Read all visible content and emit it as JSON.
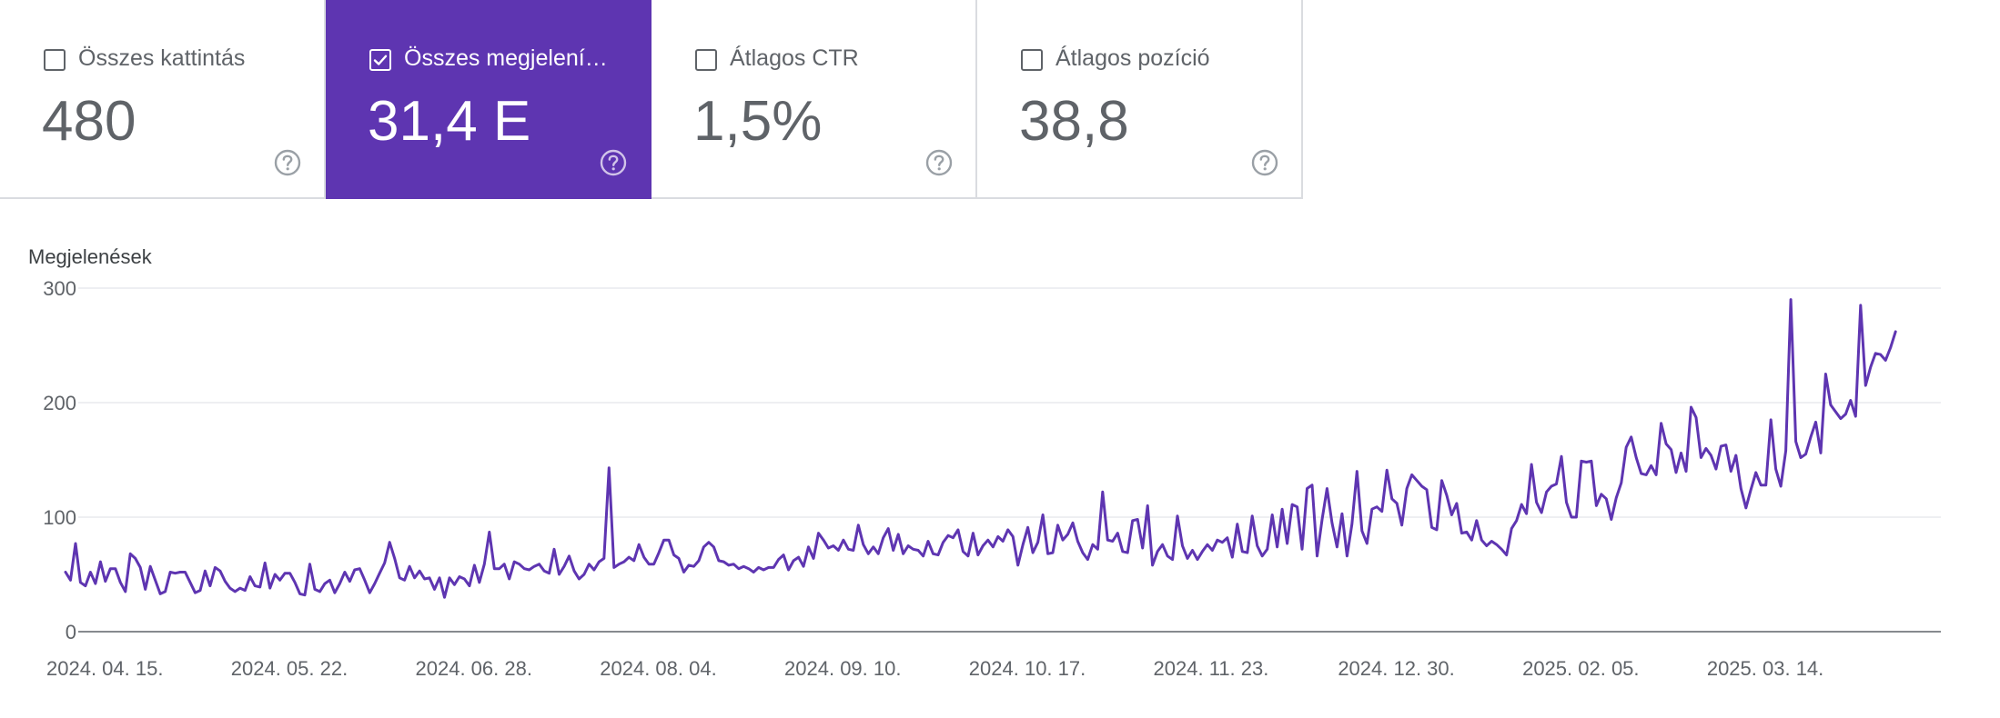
{
  "metrics": [
    {
      "label": "Összes kattintás",
      "value": "480",
      "selected": false,
      "help_icon": "help-circle-icon"
    },
    {
      "label": "Összes megjelení…",
      "value": "31,4 E",
      "selected": true,
      "help_icon": "help-circle-icon"
    },
    {
      "label": "Átlagos CTR",
      "value": "1,5%",
      "selected": false,
      "help_icon": "help-circle-icon"
    },
    {
      "label": "Átlagos pozíció",
      "value": "38,8",
      "selected": false,
      "help_icon": "help-circle-icon"
    }
  ],
  "colors": {
    "accent": "#5e35b1",
    "line": "#5e35b1",
    "grid": "#e8eaed",
    "axis": "#5f6368"
  },
  "chart_data": {
    "type": "line",
    "title": "",
    "ylabel": "Megjelenések",
    "xlabel": "",
    "ylim": [
      0,
      300
    ],
    "yticks": [
      0,
      100,
      200,
      300
    ],
    "x_tick_labels": [
      "2024. 04. 15.",
      "2024. 05. 22.",
      "2024. 06. 28.",
      "2024. 08. 04.",
      "2024. 09. 10.",
      "2024. 10. 17.",
      "2024. 11. 23.",
      "2024. 12. 30.",
      "2025. 02. 05.",
      "2025. 03. 14."
    ],
    "grid": true,
    "legend": "none",
    "series": [
      {
        "start_date": "2024-04-15",
        "values": [
          52,
          45,
          77,
          43,
          40,
          52,
          42,
          61,
          44,
          55,
          55,
          43,
          35,
          68,
          64,
          56,
          37,
          57,
          45,
          33,
          35,
          52,
          51,
          52,
          52,
          43,
          34,
          36,
          53,
          40,
          56,
          53,
          44,
          38,
          35,
          38,
          36,
          48,
          40,
          39,
          60,
          38,
          50,
          45,
          51,
          51,
          43,
          33,
          32,
          59,
          37,
          35,
          42,
          45,
          34,
          42,
          52,
          44,
          54,
          55,
          45,
          34,
          42,
          51,
          60,
          78,
          64,
          47,
          45,
          57,
          47,
          53,
          46,
          47,
          37,
          47,
          30,
          47,
          41,
          48,
          46,
          40,
          58,
          43,
          59,
          87,
          55,
          55,
          59,
          46,
          61,
          59,
          55,
          54,
          57,
          59,
          53,
          51,
          72,
          50,
          57,
          66,
          53,
          46,
          50,
          59,
          54,
          61,
          64,
          143,
          56,
          59,
          61,
          65,
          62,
          76,
          65,
          59,
          59,
          69,
          80,
          80,
          67,
          64,
          52,
          58,
          57,
          62,
          74,
          78,
          74,
          62,
          61,
          58,
          59,
          55,
          57,
          55,
          52,
          56,
          54,
          56,
          56,
          63,
          67,
          54,
          62,
          65,
          57,
          74,
          64,
          86,
          80,
          73,
          75,
          71,
          80,
          72,
          71,
          93,
          76,
          68,
          74,
          68,
          82,
          90,
          71,
          85,
          68,
          75,
          72,
          71,
          66,
          79,
          68,
          67,
          78,
          84,
          82,
          89,
          70,
          66,
          86,
          67,
          75,
          80,
          74,
          83,
          79,
          89,
          83,
          58,
          76,
          91,
          69,
          78,
          102,
          68,
          69,
          93,
          80,
          85,
          95,
          79,
          69,
          63,
          76,
          72,
          122,
          80,
          79,
          86,
          70,
          69,
          97,
          98,
          73,
          110,
          58,
          70,
          76,
          66,
          63,
          101,
          75,
          64,
          71,
          63,
          70,
          76,
          71,
          80,
          78,
          82,
          65,
          94,
          70,
          69,
          101,
          75,
          66,
          72,
          102,
          74,
          107,
          77,
          111,
          109,
          72,
          125,
          128,
          66,
          98,
          125,
          95,
          74,
          103,
          66,
          94,
          140,
          88,
          77,
          107,
          109,
          105,
          141,
          116,
          112,
          93,
          125,
          137,
          132,
          127,
          124,
          91,
          89,
          132,
          119,
          102,
          112,
          86,
          87,
          80,
          97,
          80,
          75,
          79,
          76,
          72,
          67,
          90,
          97,
          111,
          103,
          146,
          113,
          104,
          122,
          127,
          129,
          153,
          113,
          100,
          100,
          149,
          148,
          149,
          110,
          120,
          116,
          98,
          117,
          130,
          161,
          170,
          152,
          138,
          137,
          145,
          137,
          182,
          164,
          159,
          139,
          156,
          140,
          196,
          187,
          152,
          160,
          154,
          142,
          162,
          163,
          140,
          154,
          125,
          108,
          124,
          139,
          128,
          128,
          185,
          142,
          127,
          158,
          290,
          166,
          152,
          155,
          170,
          183,
          156,
          225,
          198,
          192,
          186,
          190,
          202,
          188,
          285,
          215,
          231,
          243,
          242,
          237,
          248,
          262
        ]
      }
    ]
  }
}
